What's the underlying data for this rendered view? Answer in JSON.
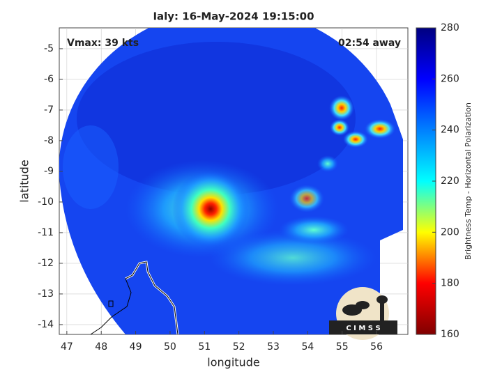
{
  "chart_data": {
    "type": "map",
    "title": "Ialy: 16-May-2024 19:15:00",
    "xlabel": "longitude",
    "ylabel": "latitude",
    "xlim": [
      46.78,
      56.91
    ],
    "ylim": [
      -14.32,
      -4.32
    ],
    "xticks": [
      47,
      48,
      49,
      50,
      51,
      52,
      53,
      54,
      55,
      56
    ],
    "yticks": [
      -14,
      -13,
      -12,
      -11,
      -10,
      -9,
      -8,
      -7,
      -6,
      -5
    ],
    "grid": true,
    "annotations": [
      "Vmax: 39 kts",
      "02:54 away"
    ],
    "logo": "C I M S S",
    "colorbar": {
      "label": "Brightness Temp - Horizontal Polarization",
      "clim": [
        160,
        280
      ],
      "ticks": [
        160,
        180,
        200,
        220,
        240,
        260,
        280
      ],
      "colors": [
        "#800000",
        "#ff0000",
        "#ffff00",
        "#00ffff",
        "#0080ff",
        "#0000ff",
        "#000080"
      ]
    }
  }
}
